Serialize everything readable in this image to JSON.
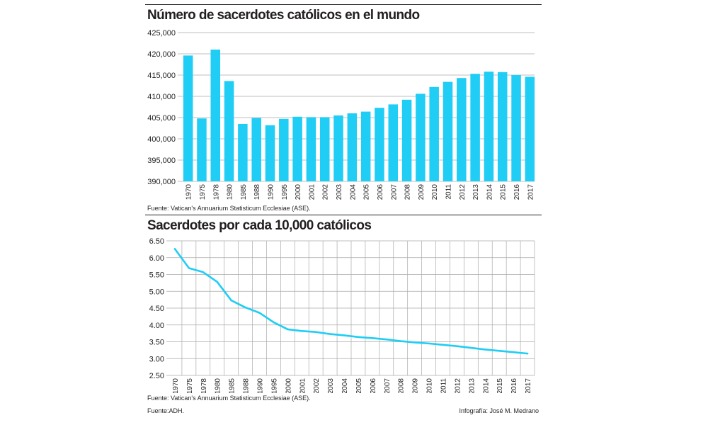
{
  "colors": {
    "accent": "#1fcdf5",
    "grid": "#aaaaaa",
    "text": "#231f20"
  },
  "footer": {
    "left": "Fuente:ADH.",
    "right": "Infografía: José M. Medrano"
  },
  "chart_data": [
    {
      "type": "bar",
      "title": "Número de sacerdotes católicos en el mundo",
      "source": "Fuente:  Vatican's Annuarium Statisticum Ecclesiae (ASE).",
      "categories": [
        "1970",
        "1975",
        "1978",
        "1980",
        "1985",
        "1988",
        "1990",
        "1995",
        "2000",
        "2001",
        "2002",
        "2003",
        "2004",
        "2005",
        "2006",
        "2007",
        "2008",
        "2009",
        "2010",
        "2011",
        "2012",
        "2013",
        "2014",
        "2015",
        "2016",
        "2017"
      ],
      "values": [
        419600,
        404800,
        421000,
        413600,
        403500,
        404900,
        403200,
        404700,
        405200,
        405100,
        405100,
        405500,
        406000,
        406400,
        407300,
        408100,
        409200,
        410600,
        412200,
        413400,
        414300,
        415300,
        415800,
        415700,
        415000,
        414600
      ],
      "ylim": [
        390000,
        425000
      ],
      "yticks": [
        "390,000",
        "395,000",
        "400,000",
        "405,000",
        "410,000",
        "415,000",
        "420,000",
        "425,000"
      ],
      "grid": true
    },
    {
      "type": "line",
      "title": "Sacerdotes por cada 10,000 católicos",
      "source": "Fuente:  Vatican's Annuarium Statisticum Ecclesiae (ASE).",
      "categories": [
        "1970",
        "1975",
        "1978",
        "1980",
        "1985",
        "1988",
        "1990",
        "1995",
        "2000",
        "2001",
        "2002",
        "2003",
        "2004",
        "2005",
        "2006",
        "2007",
        "2008",
        "2009",
        "2010",
        "2011",
        "2012",
        "2013",
        "2014",
        "2015",
        "2016",
        "2017"
      ],
      "values": [
        6.26,
        5.69,
        5.57,
        5.28,
        4.73,
        4.52,
        4.36,
        4.08,
        3.87,
        3.82,
        3.79,
        3.73,
        3.69,
        3.64,
        3.61,
        3.57,
        3.52,
        3.48,
        3.45,
        3.41,
        3.37,
        3.32,
        3.27,
        3.23,
        3.19,
        3.15
      ],
      "ylim": [
        2.5,
        6.5
      ],
      "yticks": [
        "2.50",
        "3.00",
        "3.50",
        "4.00",
        "4.50",
        "5.00",
        "5.50",
        "6.00",
        "6.50"
      ],
      "grid": true
    }
  ]
}
